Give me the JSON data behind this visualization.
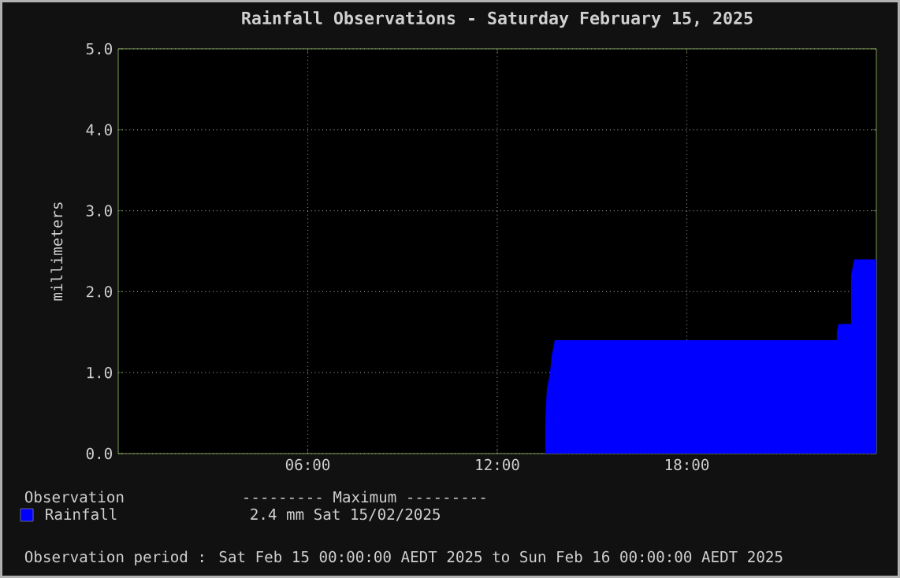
{
  "chart_data": {
    "type": "area",
    "title": "Rainfall Observations - Saturday February 15, 2025",
    "ylabel": "millimeters",
    "legend_title": "Observation",
    "series": [
      {
        "name": "Rainfall",
        "color": "#0000ff",
        "x": [
          0,
          13.52,
          13.52,
          13.57,
          13.62,
          13.67,
          13.72,
          13.77,
          13.82,
          22.75,
          22.75,
          22.8,
          23.2,
          23.2,
          23.3,
          23.95,
          24
        ],
        "values": [
          0,
          0,
          0.4,
          0.8,
          0.9,
          1.0,
          1.2,
          1.3,
          1.4,
          1.4,
          1.5,
          1.6,
          1.6,
          2.2,
          2.4,
          2.4,
          2.4
        ]
      }
    ],
    "xlim": [
      0,
      24
    ],
    "xticks": [
      {
        "value": 6,
        "label": "06:00"
      },
      {
        "value": 12,
        "label": "12:00"
      },
      {
        "value": 18,
        "label": "18:00"
      }
    ],
    "ylim": [
      0,
      5
    ],
    "yticks": [
      {
        "value": 0,
        "label": "0.0"
      },
      {
        "value": 1,
        "label": "1.0"
      },
      {
        "value": 2,
        "label": "2.0"
      },
      {
        "value": 3,
        "label": "3.0"
      },
      {
        "value": 4,
        "label": "4.0"
      },
      {
        "value": 5,
        "label": "5.0"
      }
    ],
    "grid": true,
    "legend": "bottom left",
    "annotations": [
      "--------- Maximum ---------",
      "2.4 mm  Sat 15/02/2025",
      "Observation period : Sat Feb 15 00:00:00 AEDT 2025 to Sun Feb 16 00:00:00 AEDT 2025"
    ]
  }
}
